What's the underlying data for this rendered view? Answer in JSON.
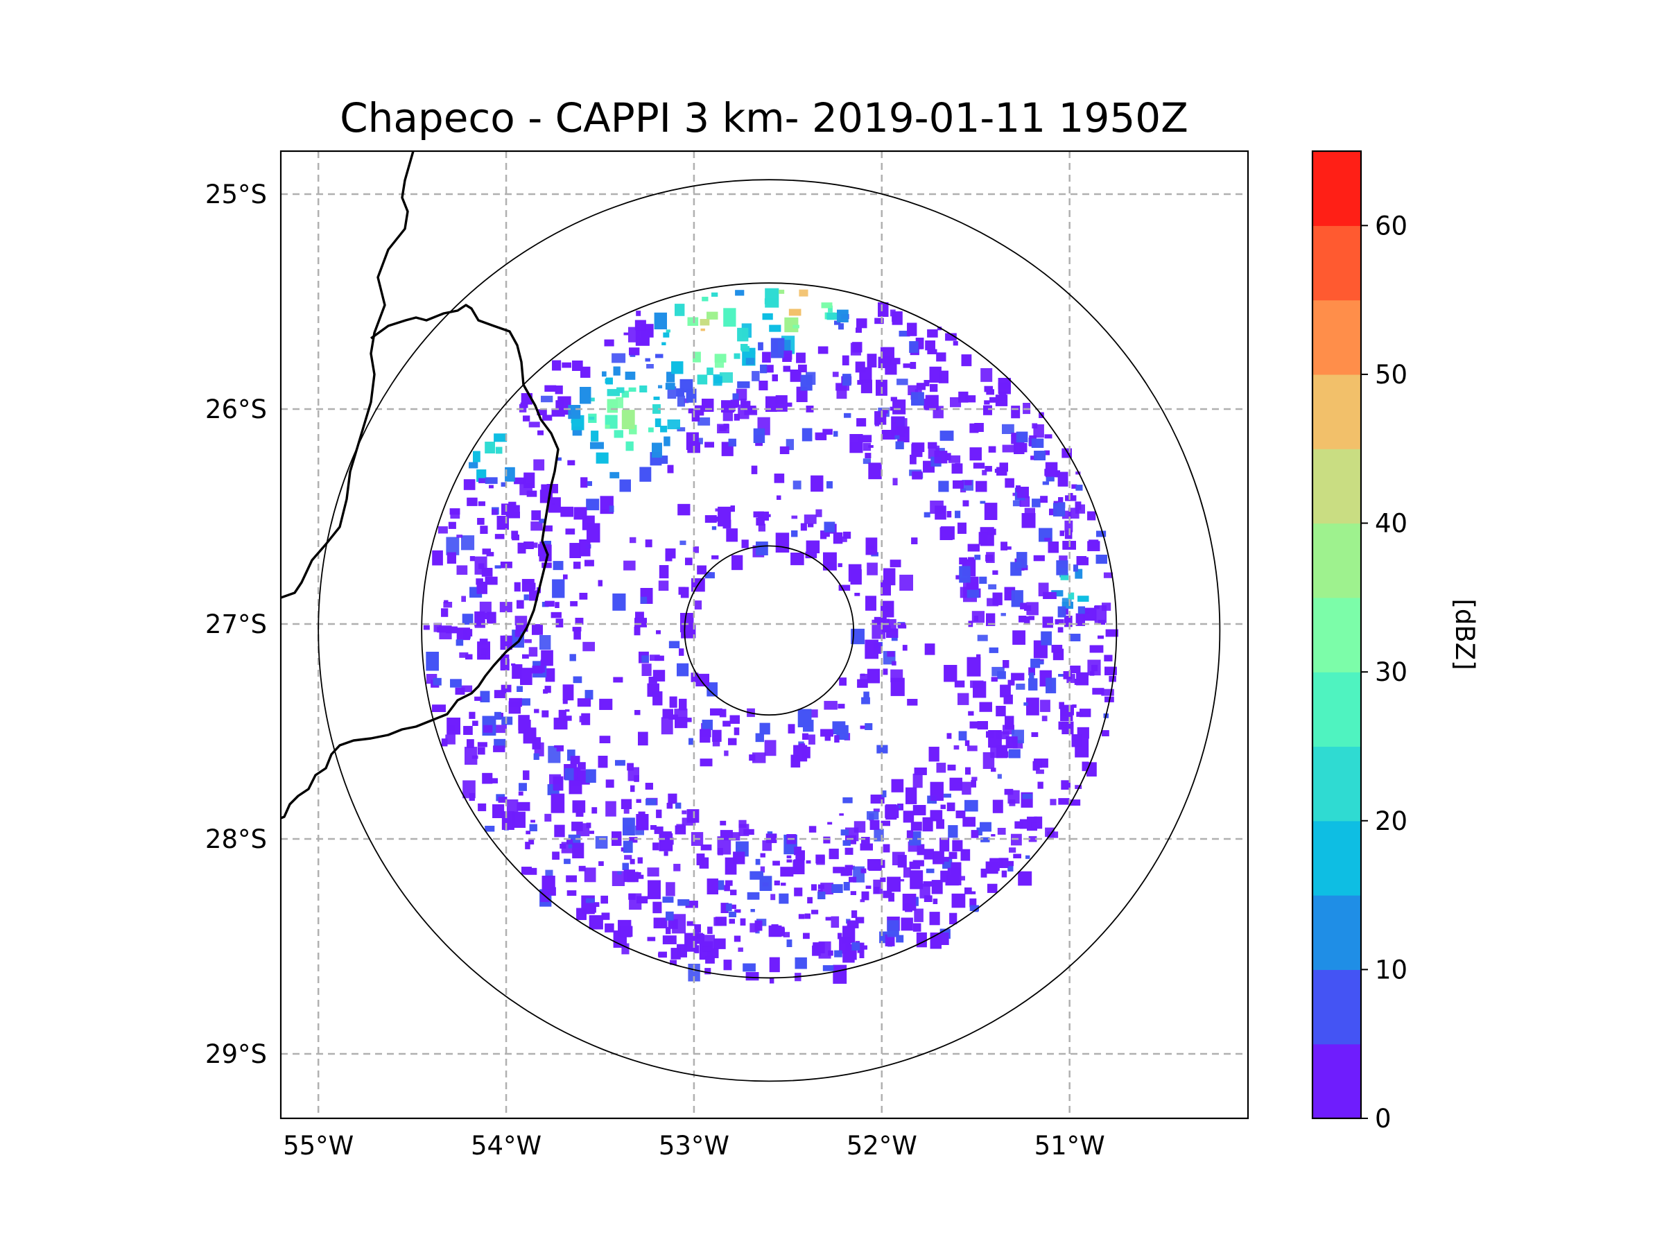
{
  "chart_data": {
    "type": "heatmap",
    "title": "Chapeco - CAPPI 3 km- 2019-01-11 1950Z",
    "projection": "radar PPI map",
    "xlabel": "",
    "ylabel": "",
    "x_ticks": [
      "55°W",
      "54°W",
      "53°W",
      "52°W",
      "51°W"
    ],
    "x_tick_values": [
      -55,
      -54,
      -53,
      -52,
      -51
    ],
    "y_ticks": [
      "25°S",
      "26°S",
      "27°S",
      "28°S",
      "29°S"
    ],
    "y_tick_values": [
      -25,
      -26,
      -27,
      -28,
      -29
    ],
    "xlim": [
      -55.2,
      -50.05
    ],
    "ylim": [
      -29.3,
      -24.8
    ],
    "grid": true,
    "radar_center": {
      "lon": -52.6,
      "lat": -27.03
    },
    "range_rings_deg": [
      0.45,
      1.85,
      2.4
    ],
    "colorbar": {
      "label": "[dBZ]",
      "ticks": [
        "0",
        "10",
        "20",
        "30",
        "40",
        "50",
        "60"
      ],
      "tick_values": [
        0,
        10,
        20,
        30,
        40,
        50,
        60
      ],
      "min": 0,
      "max": 65,
      "levels": [
        {
          "from": 0,
          "to": 5,
          "color": "#6f1dfd"
        },
        {
          "from": 5,
          "to": 10,
          "color": "#4454f4"
        },
        {
          "from": 10,
          "to": 15,
          "color": "#1f8ee6"
        },
        {
          "from": 15,
          "to": 20,
          "color": "#0ebee3"
        },
        {
          "from": 20,
          "to": 25,
          "color": "#2fdbd2"
        },
        {
          "from": 25,
          "to": 30,
          "color": "#4ff3c0"
        },
        {
          "from": 30,
          "to": 35,
          "color": "#7cfda9"
        },
        {
          "from": 35,
          "to": 40,
          "color": "#9ef28e"
        },
        {
          "from": 40,
          "to": 45,
          "color": "#c9dd82"
        },
        {
          "from": 45,
          "to": 50,
          "color": "#f2c06a"
        },
        {
          "from": 50,
          "to": 55,
          "color": "#ff8e4a"
        },
        {
          "from": 55,
          "to": 60,
          "color": "#ff5a30"
        },
        {
          "from": 60,
          "to": 65,
          "color": "#ff1f16"
        }
      ]
    }
  }
}
